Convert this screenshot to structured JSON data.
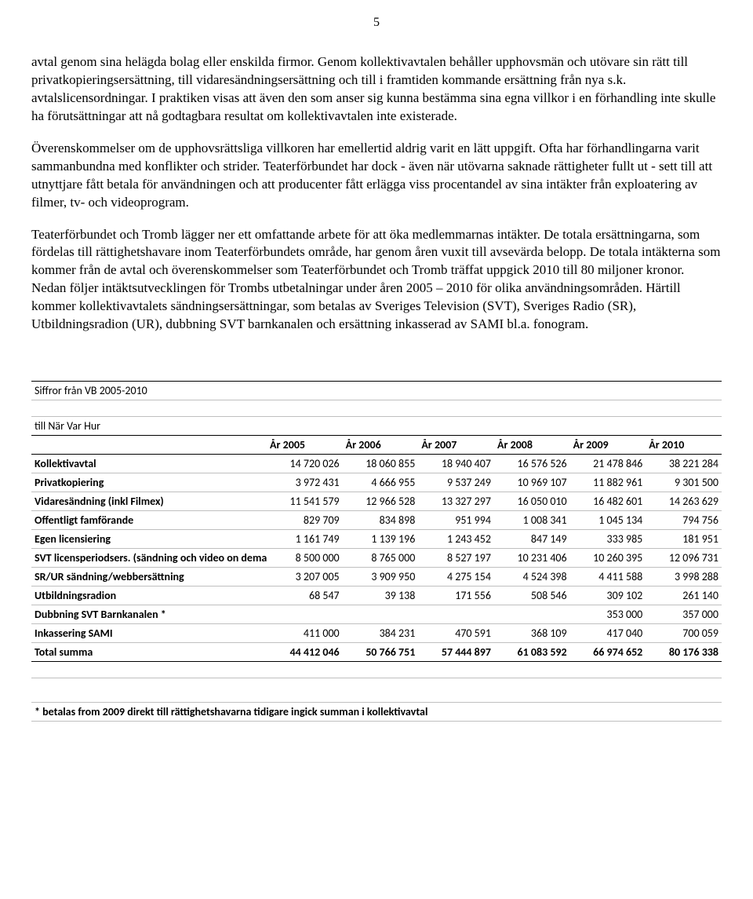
{
  "page_number": "5",
  "paragraphs": {
    "p1": "avtal genom sina helägda bolag eller enskilda firmor. Genom kollektivavtalen behåller upphovsmän och utövare sin rätt till privatkopieringsersättning, till vidaresändningsersättning och till i framtiden kommande ersättning från nya s.k. avtalslicensordningar. I praktiken visas att även den som anser sig kunna bestämma sina egna villkor i en förhandling inte skulle ha förutsättningar att nå godtagbara resultat om kollektivavtalen inte existerade.",
    "p2": "Överenskommelser om de upphovsrättsliga villkoren har emellertid aldrig varit en lätt uppgift. Ofta har förhandlingarna varit sammanbundna med konflikter och strider. Teaterförbundet har dock - även när utövarna saknade rättigheter fullt ut - sett till att utnyttjare fått betala för användningen och att producenter fått erlägga viss procentandel av sina intäkter från exploatering av filmer, tv- och videoprogram.",
    "p3": "Teaterförbundet och Tromb lägger ner ett omfattande arbete för att öka medlemmarnas intäkter. De totala ersättningarna, som fördelas till rättighetshavare inom Teaterförbundets område, har genom åren vuxit till avsevärda belopp. De totala intäkterna som kommer från de avtal och överenskommelser som Teaterförbundet och Tromb träffat uppgick 2010 till 80 miljoner kronor. Nedan följer intäktsutvecklingen för Trombs utbetalningar under åren 2005 – 2010 för olika användningsområden. Härtill kommer kollektivavtalets sändningsersättningar, som betalas av Sveriges Television (SVT), Sveriges Radio (SR), Utbildningsradion (UR), dubbning SVT barnkanalen och ersättning inkasserad av SAMI bl.a. fonogram."
  },
  "table": {
    "title1": "Siffror från VB 2005-2010",
    "title2": "till När Var Hur",
    "year_headers": [
      "År 2005",
      "År 2006",
      "År 2007",
      "År 2008",
      "År 2009",
      "År 2010"
    ],
    "rows": [
      {
        "label": "Kollektivavtal",
        "v": [
          "14 720 026",
          "18 060 855",
          "18 940 407",
          "16 576 526",
          "21 478 846",
          "38 221 284"
        ]
      },
      {
        "label": "Privatkopiering",
        "v": [
          "3 972 431",
          "4 666 955",
          "9 537 249",
          "10 969 107",
          "11 882 961",
          "9 301 500"
        ]
      },
      {
        "label": "Vidaresändning   (inkl Filmex)",
        "v": [
          "11 541 579",
          "12 966 528",
          "13 327 297",
          "16 050 010",
          "16 482 601",
          "14 263 629"
        ]
      },
      {
        "label": "Offentligt famförande",
        "v": [
          "829 709",
          "834 898",
          "951 994",
          "1 008 341",
          "1 045 134",
          "794 756"
        ]
      },
      {
        "label": "Egen licensiering",
        "v": [
          "1 161 749",
          "1 139 196",
          "1 243 452",
          "847 149",
          "333 985",
          "181 951"
        ]
      },
      {
        "label": "SVT licensperiodsers. (sändning och video on demand)",
        "v": [
          "8 500 000",
          "8 765 000",
          "8 527 197",
          "10 231 406",
          "10 260 395",
          "12 096 731"
        ]
      },
      {
        "label": "SR/UR sändning/webbersättning",
        "v": [
          "3 207 005",
          "3 909 950",
          "4 275 154",
          "4 524 398",
          "4 411 588",
          "3 998 288"
        ]
      },
      {
        "label": "Utbildningsradion",
        "v": [
          "68 547",
          "39 138",
          "171 556",
          "508 546",
          "309 102",
          "261 140"
        ]
      },
      {
        "label": "Dubbning SVT Barnkanalen *",
        "v": [
          "",
          "",
          "",
          "",
          "353 000",
          "357 000"
        ]
      },
      {
        "label": "Inkassering SAMI",
        "v": [
          "411 000",
          "384 231",
          "470 591",
          "368 109",
          "417 040",
          "700 059"
        ]
      }
    ],
    "total": {
      "label": "Total summa",
      "v": [
        "44 412 046",
        "50 766 751",
        "57 444 897",
        "61 083 592",
        "66 974 652",
        "80 176 338"
      ]
    },
    "footnote": "* betalas from 2009 direkt till rättighetshavarna tidigare ingick summan i kollektivavtal"
  }
}
